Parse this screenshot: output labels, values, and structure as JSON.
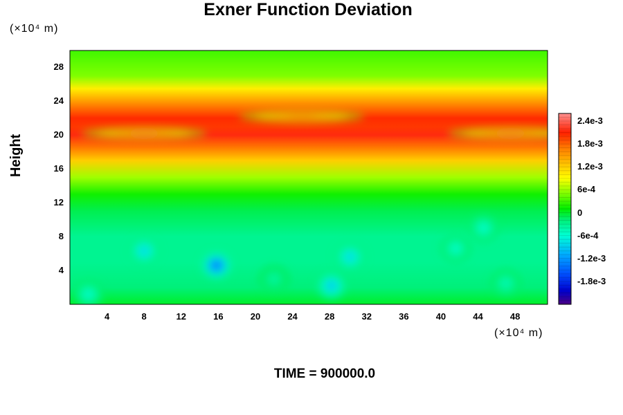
{
  "chart_data": {
    "type": "heatmap",
    "title": "Exner Function Deviation",
    "ylabel": "Height",
    "x_unit_label": "(×10⁴ m)",
    "y_unit_label": "(×10⁴ m)",
    "footer": "TIME = 900000.0",
    "xlim": [
      0,
      51.5
    ],
    "ylim": [
      0,
      30
    ],
    "x_ticks": [
      4,
      8,
      12,
      16,
      20,
      24,
      28,
      32,
      36,
      40,
      44,
      48
    ],
    "y_ticks": [
      4,
      8,
      12,
      16,
      20,
      24,
      28
    ],
    "colorbar": {
      "range": [
        -0.0024,
        0.0026
      ],
      "tick_values": [
        0.0024,
        0.0018,
        0.0012,
        0.0006,
        0,
        -0.0006,
        -0.0012,
        -0.0018
      ],
      "tick_labels": [
        "2.4e-3",
        "1.8e-3",
        "1.2e-3",
        "6e-4",
        "0",
        "-6e-4",
        "-1.2e-3",
        "-1.8e-3"
      ]
    },
    "band_profile": [
      {
        "height": 0,
        "value": 0
      },
      {
        "height": 2,
        "value": -0.0002
      },
      {
        "height": 5,
        "value": -0.0003
      },
      {
        "height": 8,
        "value": -0.0003
      },
      {
        "height": 11,
        "value": -0.0001
      },
      {
        "height": 13,
        "value": 0.00015
      },
      {
        "height": 15,
        "value": 0.0006
      },
      {
        "height": 17,
        "value": 0.0012
      },
      {
        "height": 18.5,
        "value": 0.0017
      },
      {
        "height": 20,
        "value": 0.00215
      },
      {
        "height": 21,
        "value": 0.002
      },
      {
        "height": 22,
        "value": 0.00205
      },
      {
        "height": 24,
        "value": 0.0015
      },
      {
        "height": 25.5,
        "value": 0.001
      },
      {
        "height": 27,
        "value": 0.0005
      },
      {
        "height": 30,
        "value": 0.0003
      }
    ],
    "anomalies": [
      {
        "x": 8,
        "y": 6.3,
        "value": -0.0009
      },
      {
        "x": 15.8,
        "y": 4.6,
        "value": -0.0015
      },
      {
        "x": 28.2,
        "y": 2.2,
        "value": -0.001
      },
      {
        "x": 30.2,
        "y": 5.6,
        "value": -0.0009
      },
      {
        "x": 41.6,
        "y": 6.6,
        "value": -0.0006
      },
      {
        "x": 44.6,
        "y": 9,
        "value": -0.0006
      },
      {
        "x": 2,
        "y": 1.2,
        "value": -0.0006
      },
      {
        "x": 47,
        "y": 2.5,
        "value": -0.0005
      },
      {
        "x": 22,
        "y": 3,
        "value": -0.0004
      },
      {
        "x": 8,
        "y": 20.2,
        "value": 0.0023
      },
      {
        "x": 47.5,
        "y": 20.2,
        "value": 0.0023
      },
      {
        "x": 25,
        "y": 22.2,
        "value": 0.0022
      }
    ]
  }
}
